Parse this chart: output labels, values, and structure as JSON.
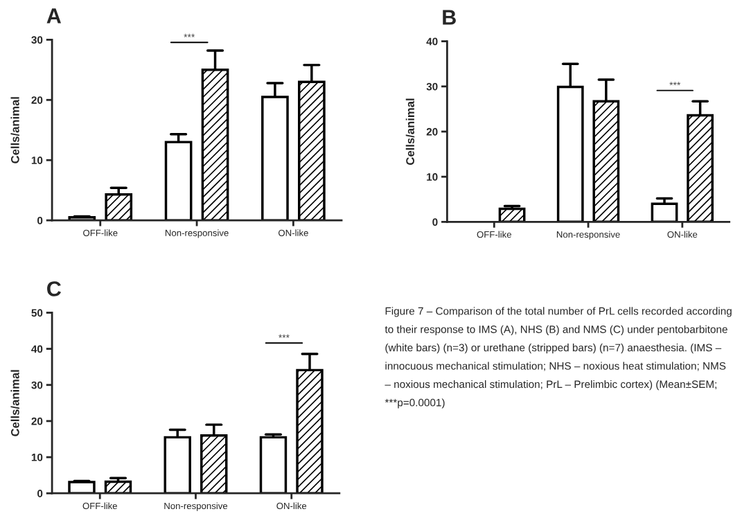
{
  "chart_data": [
    {
      "type": "bar",
      "title": "A",
      "ylabel": "Cells/animal",
      "categories": [
        "OFF-like",
        "Non-responsive",
        "ON-like"
      ],
      "ylim": [
        0,
        30
      ],
      "yticks": [
        0,
        10,
        20,
        30
      ],
      "grid": false,
      "legend": false,
      "series": [
        {
          "color": "#ffffff",
          "values": [
            0.5,
            13.0,
            20.5
          ],
          "errors": [
            [
              0.5,
              0.65
            ],
            [
              13.0,
              14.3
            ],
            [
              20.5,
              22.8
            ]
          ]
        },
        {
          "color": "#000000",
          "values": [
            4.3,
            25.0,
            23.0
          ],
          "errors": [
            [
              4.3,
              5.4
            ],
            [
              25.0,
              28.2
            ],
            [
              23.0,
              25.8
            ]
          ]
        }
      ],
      "annotations": [
        "***"
      ]
    },
    {
      "type": "bar",
      "title": "B",
      "ylabel": "Cells/animal",
      "categories": [
        "OFF-like",
        "Non-responsive",
        "ON-like"
      ],
      "ylim": [
        0,
        40
      ],
      "yticks": [
        0,
        10,
        20,
        30,
        40
      ],
      "grid": false,
      "legend": false,
      "series": [
        {
          "color": "#ffffff",
          "values": [
            0,
            29.9,
            4.0
          ],
          "errors": [
            null,
            [
              29.9,
              35.0
            ],
            [
              4.0,
              5.2
            ]
          ]
        },
        {
          "color": "#000000",
          "values": [
            2.9,
            26.7,
            23.6
          ],
          "errors": [
            [
              2.9,
              3.5
            ],
            [
              26.7,
              31.5
            ],
            [
              23.6,
              26.7
            ]
          ]
        }
      ],
      "annotations": [
        "***"
      ]
    },
    {
      "type": "bar",
      "title": "C",
      "ylabel": "Cells/animal",
      "categories": [
        "OFF-like",
        "Non-responsive",
        "ON-like"
      ],
      "ylim": [
        0,
        50
      ],
      "yticks": [
        0,
        10,
        20,
        30,
        40,
        50
      ],
      "grid": false,
      "legend": false,
      "series": [
        {
          "color": "#ffffff",
          "values": [
            3.1,
            15.5,
            15.5
          ],
          "errors": [
            [
              3.1,
              3.4
            ],
            [
              15.5,
              17.6
            ],
            [
              15.5,
              16.3
            ]
          ]
        },
        {
          "color": "#000000",
          "values": [
            3.2,
            16.0,
            34.1
          ],
          "errors": [
            [
              3.2,
              4.2
            ],
            [
              16.0,
              19.0
            ],
            [
              34.1,
              38.6
            ]
          ]
        }
      ],
      "annotations": [
        "***",
        "Figure 7 – Comparison of the total number of PrL cells recorded according to their response to IMS (A), NHS (B) and NMS (C) under pentobarbitone (white bars) (n=3) or urethane (stripped bars) (n=7) anaesthesia. (IMS – innocuous mechanical stimulation; NHS – noxious heat stimulation; NMS – noxious mechanical stimulation; PrL – Prelimbic cortex) (Mean±SEM; ***p=0.0001)"
      ]
    }
  ]
}
